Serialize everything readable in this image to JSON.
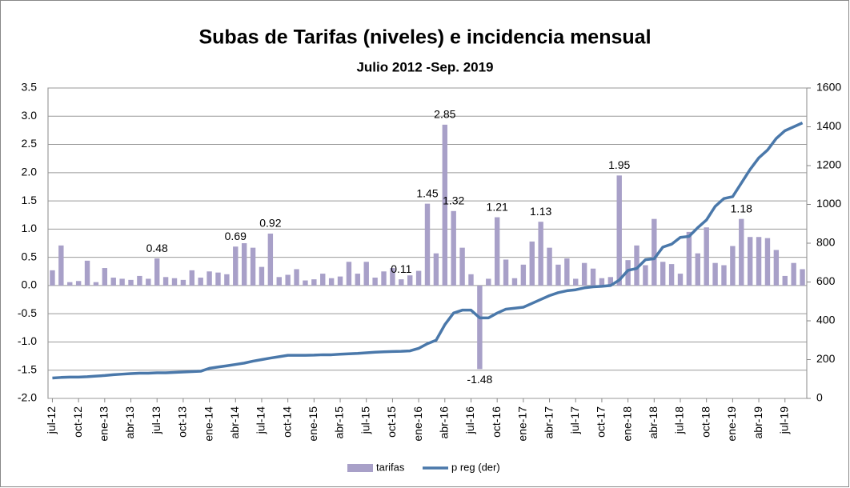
{
  "chart_data": {
    "type": "bar_line",
    "title": "Subas de Tarifas (niveles) e incidencia mensual",
    "subtitle": "Julio 2012 -Sep. 2019",
    "categories": [
      "jul-12",
      null,
      null,
      "oct-12",
      null,
      null,
      "ene-13",
      null,
      null,
      "abr-13",
      null,
      null,
      "jul-13",
      null,
      null,
      "oct-13",
      null,
      null,
      "ene-14",
      null,
      null,
      "abr-14",
      null,
      null,
      "jul-14",
      null,
      null,
      "oct-14",
      null,
      null,
      "ene-15",
      null,
      null,
      "abr-15",
      null,
      null,
      "jul-15",
      null,
      null,
      "oct-15",
      null,
      null,
      "ene-16",
      null,
      null,
      "abr-16",
      null,
      null,
      "jul-16",
      null,
      null,
      "oct-16",
      null,
      null,
      "ene-17",
      null,
      null,
      "abr-17",
      null,
      null,
      "jul-17",
      null,
      null,
      "oct-17",
      null,
      null,
      "ene-18",
      null,
      null,
      "abr-18",
      null,
      null,
      "jul-18",
      null,
      null,
      "oct-18",
      null,
      null,
      "ene-19",
      null,
      null,
      "abr-19",
      null,
      null,
      "jul-19",
      null,
      null
    ],
    "series": [
      {
        "name": "tarifas",
        "color": "#a8a0c8",
        "type": "bar",
        "values": [
          0.27,
          0.71,
          0.06,
          0.08,
          0.44,
          0.06,
          0.31,
          0.14,
          0.12,
          0.1,
          0.17,
          0.12,
          0.48,
          0.15,
          0.13,
          0.1,
          0.27,
          0.14,
          0.25,
          0.23,
          0.2,
          0.69,
          0.75,
          0.67,
          0.33,
          0.92,
          0.15,
          0.19,
          0.29,
          0.09,
          0.11,
          0.21,
          0.13,
          0.16,
          0.42,
          0.21,
          0.42,
          0.14,
          0.25,
          0.31,
          0.11,
          0.18,
          0.26,
          1.45,
          0.57,
          2.85,
          1.32,
          0.67,
          0.2,
          -1.48,
          0.12,
          1.21,
          0.46,
          0.13,
          0.37,
          0.78,
          1.13,
          0.67,
          0.37,
          0.48,
          0.12,
          0.4,
          0.3,
          0.13,
          0.15,
          1.95,
          0.45,
          0.71,
          0.36,
          1.18,
          0.42,
          0.38,
          0.21,
          0.95,
          0.57,
          1.03,
          0.4,
          0.36,
          0.7,
          1.18,
          0.86,
          0.86,
          0.84,
          0.63,
          0.17,
          0.4,
          0.29
        ],
        "value_labels": [
          null,
          null,
          null,
          null,
          null,
          null,
          null,
          null,
          null,
          null,
          null,
          null,
          "0.48",
          null,
          null,
          null,
          null,
          null,
          null,
          null,
          null,
          "0.69",
          null,
          null,
          null,
          "0.92",
          null,
          null,
          null,
          null,
          null,
          null,
          null,
          null,
          null,
          null,
          null,
          null,
          null,
          null,
          "0.11",
          null,
          null,
          "1.45",
          null,
          "2.85",
          "1.32",
          null,
          null,
          "-1.48",
          null,
          "1.21",
          null,
          null,
          null,
          null,
          "1.13",
          null,
          null,
          null,
          null,
          null,
          null,
          null,
          null,
          "1.95",
          null,
          null,
          null,
          null,
          null,
          null,
          null,
          null,
          null,
          null,
          null,
          null,
          null,
          "1.18",
          null,
          null,
          null,
          null,
          null,
          null,
          null
        ]
      },
      {
        "name": "p reg (der)",
        "color": "#4a78aa",
        "type": "line",
        "axis": "y2",
        "values": [
          105,
          108,
          110,
          110,
          112,
          115,
          118,
          122,
          125,
          128,
          130,
          130,
          132,
          132,
          134,
          136,
          138,
          140,
          155,
          162,
          168,
          175,
          182,
          192,
          200,
          208,
          215,
          222,
          222,
          222,
          223,
          225,
          225,
          228,
          230,
          232,
          235,
          238,
          240,
          242,
          243,
          245,
          258,
          282,
          300,
          380,
          440,
          455,
          455,
          415,
          415,
          440,
          460,
          465,
          470,
          490,
          510,
          530,
          545,
          555,
          560,
          570,
          575,
          578,
          582,
          610,
          660,
          670,
          715,
          720,
          780,
          795,
          830,
          835,
          880,
          920,
          990,
          1030,
          1040,
          1110,
          1180,
          1240,
          1280,
          1340,
          1380,
          1400,
          1420
        ]
      }
    ],
    "ylim": [
      -2.0,
      3.5
    ],
    "yticks": [
      {
        "value": -2,
        "label": "-2.0"
      },
      -1.5,
      {
        "value": -1,
        "label": "-1.0"
      },
      -0.5,
      {
        "value": 0,
        "label": "0.0"
      },
      0.5,
      {
        "value": 1,
        "label": "1.0"
      },
      1.5,
      {
        "value": 2,
        "label": "2.0"
      },
      2.5,
      {
        "value": 3,
        "label": "3.0"
      },
      3.5
    ],
    "y2lim": [
      0,
      1600
    ],
    "y2ticks": [
      0,
      200,
      400,
      600,
      800,
      1000,
      1200,
      1400,
      1600
    ],
    "grid": true,
    "legend": "bottom"
  }
}
